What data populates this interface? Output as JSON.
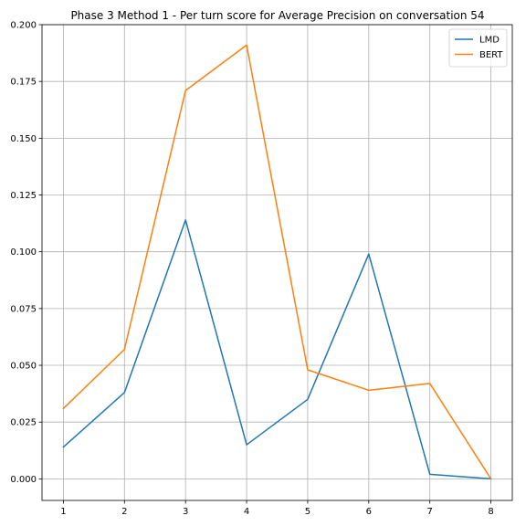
{
  "chart_data": {
    "type": "line",
    "title": "Phase 3 Method 1 - Per turn score for Average Precision on conversation 54",
    "xlabel": "",
    "ylabel": "",
    "x": [
      1,
      2,
      3,
      4,
      5,
      6,
      7,
      8
    ],
    "xlim": [
      0.65,
      8.35
    ],
    "ylim": [
      -0.0095,
      0.2
    ],
    "xticks": [
      1,
      2,
      3,
      4,
      5,
      6,
      7,
      8
    ],
    "yticks": [
      0.0,
      0.025,
      0.05,
      0.075,
      0.1,
      0.125,
      0.15,
      0.175,
      0.2
    ],
    "ytick_labels": [
      "0.000",
      "0.025",
      "0.050",
      "0.075",
      "0.100",
      "0.125",
      "0.150",
      "0.175",
      "0.200"
    ],
    "grid": true,
    "legend_position": "top-right",
    "series": [
      {
        "name": "LMD",
        "color": "#1f77b4",
        "values": [
          0.014,
          0.038,
          0.114,
          0.015,
          0.035,
          0.099,
          0.002,
          0.0
        ]
      },
      {
        "name": "BERT",
        "color": "#ff7f0e",
        "values": [
          0.031,
          0.057,
          0.171,
          0.191,
          0.048,
          0.039,
          0.042,
          0.0
        ]
      }
    ]
  }
}
